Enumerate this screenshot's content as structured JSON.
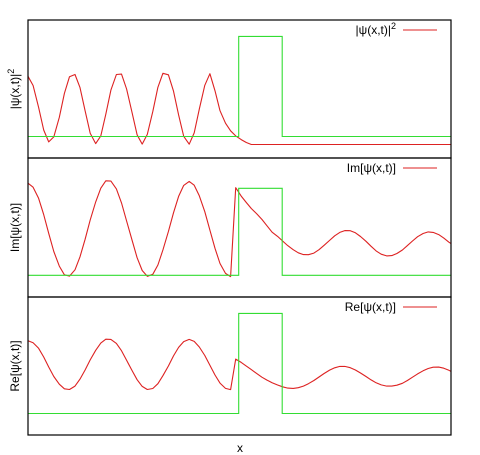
{
  "colors": {
    "wave": "#dd2222",
    "barrier": "#33dd33",
    "frame": "#000000"
  },
  "xlabel": "x",
  "chart_data": [
    {
      "type": "line",
      "panel": "top",
      "ylabel": "|ψ(x,t)|",
      "ylabel_sup": "2",
      "legend": {
        "label": "|ψ(x,t)|",
        "label_sup": "2",
        "position": "top-right"
      },
      "x_range": [
        0,
        1
      ],
      "y_range": [
        0,
        1
      ],
      "grid": false,
      "series": [
        {
          "name": "|ψ(x,t)|2",
          "color": "#dd2222",
          "x": [
            0.0,
            0.012,
            0.025,
            0.037,
            0.049,
            0.061,
            0.074,
            0.086,
            0.098,
            0.111,
            0.123,
            0.135,
            0.147,
            0.16,
            0.172,
            0.184,
            0.196,
            0.209,
            0.221,
            0.233,
            0.246,
            0.258,
            0.27,
            0.282,
            0.295,
            0.307,
            0.319,
            0.332,
            0.344,
            0.356,
            0.368,
            0.381,
            0.393,
            0.405,
            0.418,
            0.43,
            0.442,
            0.454,
            0.467,
            0.479,
            0.491,
            0.504,
            0.516,
            0.528,
            0.541,
            0.553,
            0.565,
            0.577,
            0.59,
            0.602,
            0.614,
            0.627,
            0.639,
            0.651,
            0.663,
            0.676,
            0.688,
            0.7,
            0.713,
            0.725,
            0.737,
            0.749,
            0.762,
            0.774,
            0.786,
            0.799,
            0.811,
            0.823,
            0.835,
            0.848,
            0.86,
            0.872,
            0.885,
            0.897,
            0.909,
            0.921,
            0.934,
            0.946,
            0.958,
            0.971,
            0.983,
            0.995,
            1.0
          ],
          "y": [
            0.592,
            0.525,
            0.367,
            0.203,
            0.117,
            0.153,
            0.294,
            0.468,
            0.589,
            0.605,
            0.51,
            0.343,
            0.18,
            0.104,
            0.16,
            0.317,
            0.492,
            0.605,
            0.608,
            0.5,
            0.328,
            0.168,
            0.101,
            0.171,
            0.337,
            0.512,
            0.614,
            0.603,
            0.485,
            0.312,
            0.157,
            0.1,
            0.182,
            0.354,
            0.527,
            0.611,
            0.487,
            0.343,
            0.252,
            0.197,
            0.16,
            0.133,
            0.112,
            0.098,
            0.098,
            0.098,
            0.098,
            0.098,
            0.098,
            0.098,
            0.098,
            0.098,
            0.098,
            0.098,
            0.098,
            0.098,
            0.098,
            0.098,
            0.098,
            0.098,
            0.098,
            0.098,
            0.098,
            0.098,
            0.098,
            0.098,
            0.098,
            0.098,
            0.098,
            0.098,
            0.098,
            0.098,
            0.098,
            0.098,
            0.098,
            0.098,
            0.098,
            0.098,
            0.098,
            0.098,
            0.098,
            0.098,
            0.098
          ]
        },
        {
          "name": "barrier",
          "color": "#33dd33",
          "x": [
            0.0,
            0.498,
            0.498,
            0.601,
            0.601,
            1.0
          ],
          "y": [
            0.156,
            0.156,
            0.881,
            0.881,
            0.156,
            0.156
          ]
        }
      ]
    },
    {
      "type": "line",
      "panel": "middle",
      "ylabel": "Im[ψ(x,t)]",
      "legend": {
        "label": "Im[ψ(x,t)]",
        "position": "top-right"
      },
      "x_range": [
        0,
        1
      ],
      "y_range": [
        0,
        1
      ],
      "grid": false,
      "series": [
        {
          "name": "Im[ψ(x,t)]",
          "color": "#dd2222",
          "x": [
            0.0,
            0.012,
            0.025,
            0.037,
            0.049,
            0.061,
            0.074,
            0.086,
            0.098,
            0.111,
            0.123,
            0.135,
            0.147,
            0.16,
            0.172,
            0.184,
            0.196,
            0.209,
            0.221,
            0.233,
            0.246,
            0.258,
            0.27,
            0.282,
            0.295,
            0.307,
            0.319,
            0.332,
            0.344,
            0.356,
            0.368,
            0.381,
            0.393,
            0.405,
            0.418,
            0.43,
            0.442,
            0.454,
            0.467,
            0.479,
            0.491,
            0.504,
            0.516,
            0.528,
            0.541,
            0.553,
            0.565,
            0.577,
            0.59,
            0.602,
            0.614,
            0.627,
            0.639,
            0.651,
            0.663,
            0.676,
            0.688,
            0.7,
            0.713,
            0.725,
            0.737,
            0.749,
            0.762,
            0.774,
            0.786,
            0.799,
            0.811,
            0.823,
            0.835,
            0.848,
            0.86,
            0.872,
            0.885,
            0.897,
            0.909,
            0.921,
            0.934,
            0.946,
            0.958,
            0.971,
            0.983,
            0.995,
            1.0
          ],
          "y": [
            0.819,
            0.79,
            0.71,
            0.593,
            0.458,
            0.327,
            0.222,
            0.16,
            0.15,
            0.196,
            0.289,
            0.415,
            0.554,
            0.684,
            0.783,
            0.836,
            0.834,
            0.778,
            0.677,
            0.547,
            0.408,
            0.283,
            0.191,
            0.149,
            0.163,
            0.23,
            0.338,
            0.471,
            0.606,
            0.724,
            0.803,
            0.832,
            0.804,
            0.728,
            0.614,
            0.481,
            0.35,
            0.241,
            0.17,
            0.147,
            0.786,
            0.726,
            0.68,
            0.637,
            0.598,
            0.558,
            0.512,
            0.466,
            0.436,
            0.403,
            0.37,
            0.34,
            0.318,
            0.305,
            0.304,
            0.316,
            0.34,
            0.372,
            0.407,
            0.44,
            0.465,
            0.478,
            0.477,
            0.462,
            0.435,
            0.401,
            0.365,
            0.332,
            0.308,
            0.296,
            0.298,
            0.313,
            0.338,
            0.37,
            0.403,
            0.434,
            0.457,
            0.468,
            0.465,
            0.449,
            0.424,
            0.394,
            0.384
          ]
        },
        {
          "name": "barrier",
          "color": "#33dd33",
          "x": [
            0.0,
            0.498,
            0.498,
            0.601,
            0.601,
            1.0
          ],
          "y": [
            0.156,
            0.156,
            0.782,
            0.782,
            0.156,
            0.156
          ]
        }
      ]
    },
    {
      "type": "line",
      "panel": "bottom",
      "ylabel": "Re[ψ(x,t)]",
      "legend": {
        "label": "Re[ψ(x,t)]",
        "position": "top-right"
      },
      "x_range": [
        0,
        1
      ],
      "y_range": [
        0,
        1
      ],
      "grid": false,
      "series": [
        {
          "name": "Re[ψ(x,t)]",
          "color": "#dd2222",
          "x": [
            0.0,
            0.012,
            0.025,
            0.037,
            0.049,
            0.061,
            0.074,
            0.086,
            0.098,
            0.111,
            0.123,
            0.135,
            0.147,
            0.16,
            0.172,
            0.184,
            0.196,
            0.209,
            0.221,
            0.233,
            0.246,
            0.258,
            0.27,
            0.282,
            0.295,
            0.307,
            0.319,
            0.332,
            0.344,
            0.356,
            0.368,
            0.381,
            0.393,
            0.405,
            0.418,
            0.43,
            0.442,
            0.454,
            0.467,
            0.479,
            0.491,
            0.504,
            0.516,
            0.528,
            0.541,
            0.553,
            0.565,
            0.577,
            0.59,
            0.602,
            0.614,
            0.627,
            0.639,
            0.651,
            0.663,
            0.676,
            0.688,
            0.7,
            0.713,
            0.725,
            0.737,
            0.749,
            0.762,
            0.774,
            0.786,
            0.799,
            0.811,
            0.823,
            0.835,
            0.848,
            0.86,
            0.872,
            0.885,
            0.897,
            0.909,
            0.921,
            0.934,
            0.946,
            0.958,
            0.971,
            0.983,
            0.995,
            1.0
          ],
          "y": [
            0.683,
            0.669,
            0.628,
            0.565,
            0.493,
            0.424,
            0.368,
            0.335,
            0.33,
            0.354,
            0.405,
            0.471,
            0.544,
            0.614,
            0.666,
            0.694,
            0.693,
            0.664,
            0.611,
            0.541,
            0.467,
            0.401,
            0.352,
            0.33,
            0.337,
            0.372,
            0.43,
            0.5,
            0.573,
            0.635,
            0.677,
            0.693,
            0.678,
            0.638,
            0.576,
            0.505,
            0.435,
            0.376,
            0.338,
            0.329,
            0.55,
            0.526,
            0.499,
            0.474,
            0.445,
            0.419,
            0.398,
            0.379,
            0.362,
            0.349,
            0.34,
            0.338,
            0.343,
            0.354,
            0.372,
            0.395,
            0.42,
            0.446,
            0.47,
            0.487,
            0.497,
            0.497,
            0.488,
            0.471,
            0.449,
            0.424,
            0.399,
            0.378,
            0.363,
            0.354,
            0.354,
            0.361,
            0.375,
            0.395,
            0.419,
            0.443,
            0.465,
            0.482,
            0.491,
            0.492,
            0.484,
            0.469,
            0.461
          ]
        },
        {
          "name": "barrier",
          "color": "#33dd33",
          "x": [
            0.0,
            0.498,
            0.498,
            0.601,
            0.601,
            1.0
          ],
          "y": [
            0.156,
            0.156,
            0.881,
            0.881,
            0.156,
            0.156
          ]
        }
      ]
    }
  ]
}
